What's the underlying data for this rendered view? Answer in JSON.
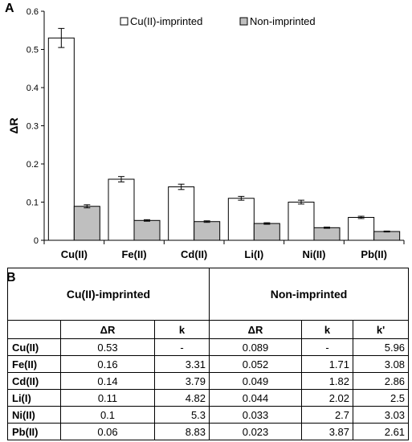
{
  "panel_a_label": "A",
  "panel_b_label": "B",
  "chart_data": {
    "type": "bar",
    "title": "",
    "xlabel": "",
    "ylabel": "ΔR",
    "ylim": [
      0,
      0.6
    ],
    "yticks": [
      "0",
      "0.1",
      "0.2",
      "0.3",
      "0.4",
      "0.5",
      "0.6"
    ],
    "categories": [
      "Cu(II)",
      "Fe(II)",
      "Cd(II)",
      "Li(I)",
      "Ni(II)",
      "Pb(II)"
    ],
    "series": [
      {
        "name": "Cu(II)-imprinted",
        "color": "#ffffff",
        "values": [
          0.53,
          0.16,
          0.14,
          0.11,
          0.1,
          0.06
        ],
        "errors": [
          0.025,
          0.007,
          0.007,
          0.005,
          0.005,
          0.003
        ]
      },
      {
        "name": "Non-imprinted",
        "color": "#bfbfbf",
        "values": [
          0.089,
          0.052,
          0.049,
          0.044,
          0.033,
          0.023
        ],
        "errors": [
          0.004,
          0.002,
          0.002,
          0.002,
          0.0015,
          0.0012
        ]
      }
    ],
    "grid": false,
    "legend": "top"
  },
  "table": {
    "group_headers": [
      "Cu(II)-imprinted",
      "Non-imprinted"
    ],
    "columns": [
      "ΔR",
      "k",
      "ΔR",
      "k",
      "k'"
    ],
    "rows": [
      {
        "ion": "Cu(II)",
        "cells": [
          "0.53",
          "-",
          "0.089",
          "-",
          "5.96"
        ]
      },
      {
        "ion": "Fe(II)",
        "cells": [
          "0.16",
          "3.31",
          "0.052",
          "1.71",
          "3.08"
        ]
      },
      {
        "ion": "Cd(II)",
        "cells": [
          "0.14",
          "3.79",
          "0.049",
          "1.82",
          "2.86"
        ]
      },
      {
        "ion": "Li(I)",
        "cells": [
          "0.11",
          "4.82",
          "0.044",
          "2.02",
          "2.5"
        ]
      },
      {
        "ion": "Ni(II)",
        "cells": [
          "0.1",
          "5.3",
          "0.033",
          "2.7",
          "3.03"
        ]
      },
      {
        "ion": "Pb(II)",
        "cells": [
          "0.06",
          "8.83",
          "0.023",
          "3.87",
          "2.61"
        ]
      }
    ]
  }
}
